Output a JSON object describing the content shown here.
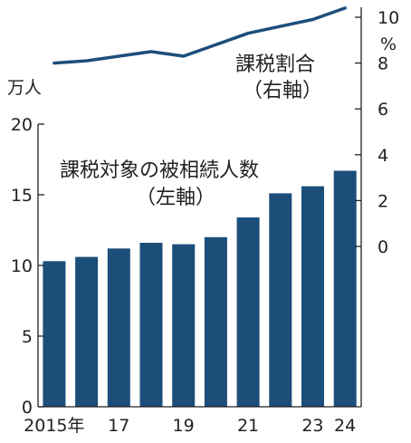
{
  "chart_data": {
    "type": "bar",
    "categories": [
      "2015",
      "2016",
      "2017",
      "2018",
      "2019",
      "2020",
      "2021",
      "2022",
      "2023",
      "2024"
    ],
    "x_tick_labels": [
      "2015年",
      "",
      "17",
      "",
      "19",
      "",
      "21",
      "",
      "23",
      "24"
    ],
    "series": [
      {
        "name": "課税対象の被相続人数",
        "axis_note": "（左軸）",
        "type": "bar",
        "values": [
          10.3,
          10.6,
          11.2,
          11.6,
          11.5,
          12.0,
          13.4,
          15.1,
          15.6,
          16.7
        ],
        "color": "#1c4e7a"
      },
      {
        "name": "課税割合",
        "axis_note": "（右軸）",
        "type": "line",
        "values": [
          8.0,
          8.1,
          8.3,
          8.5,
          8.3,
          8.8,
          9.3,
          9.6,
          9.9,
          10.4
        ],
        "color": "#1c4e7a"
      }
    ],
    "left_axis": {
      "unit": "万人",
      "ylim": [
        0,
        20
      ],
      "ticks": [
        0,
        5,
        10,
        15,
        20
      ]
    },
    "right_axis": {
      "unit": "%",
      "ylim": [
        0,
        10
      ],
      "ticks": [
        0,
        2,
        4,
        6,
        8,
        10
      ]
    }
  }
}
